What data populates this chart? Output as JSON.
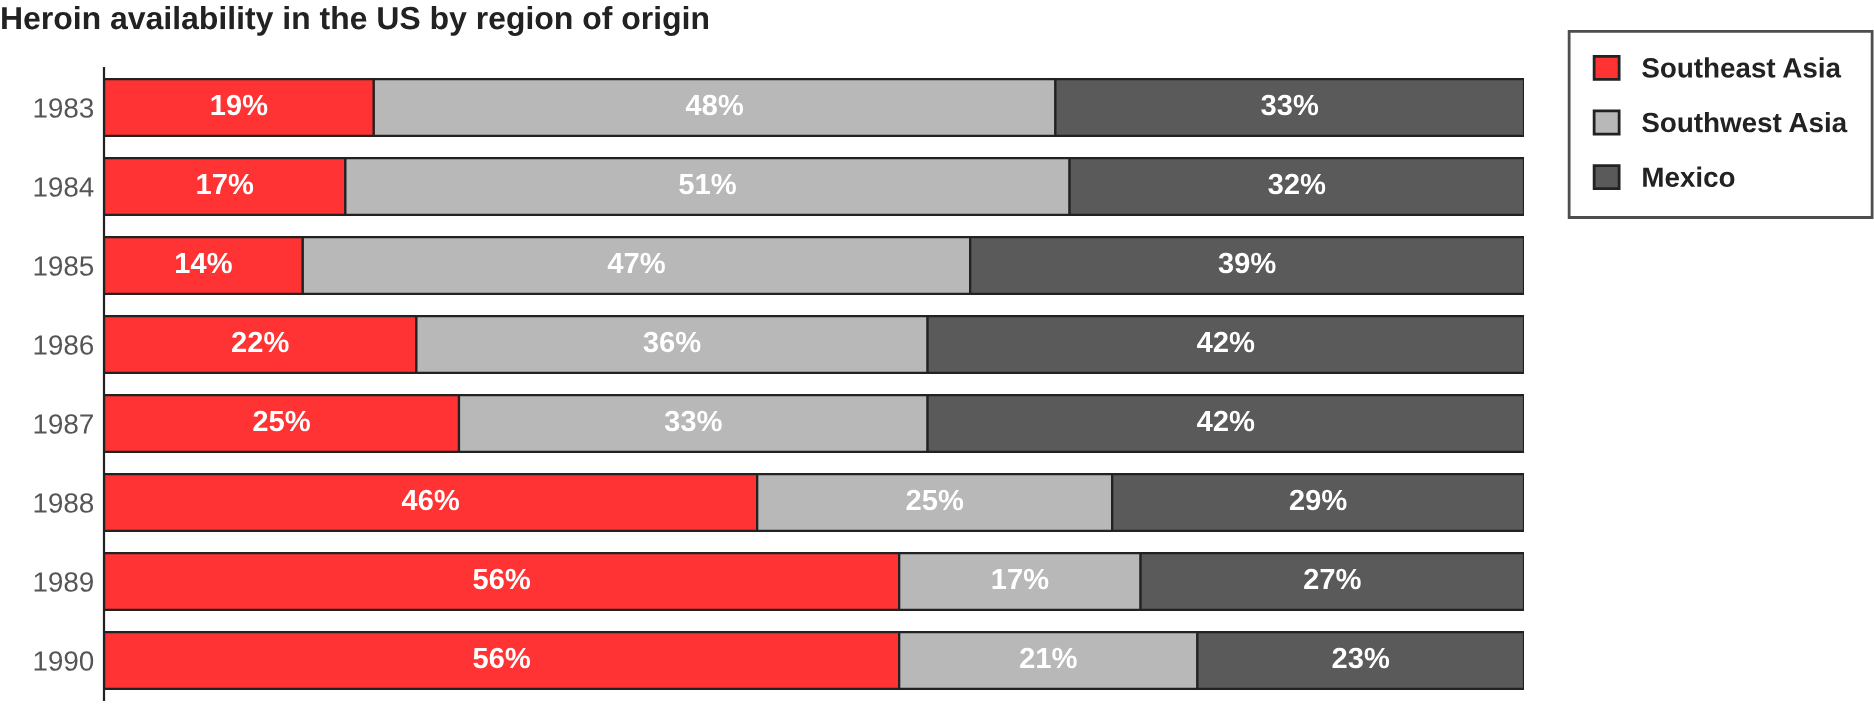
{
  "chart_data": {
    "type": "bar",
    "orientation": "horizontal",
    "stacked": true,
    "title": "Heroin availability in the US by region of origin",
    "categories": [
      "1983",
      "1984",
      "1985",
      "1986",
      "1987",
      "1988",
      "1989",
      "1990"
    ],
    "xlim": [
      0,
      100
    ],
    "tick_labels": "y",
    "legend": "top right",
    "series": [
      {
        "name": "Southeast Asia",
        "color": "#ff3333",
        "values": [
          19,
          17,
          14,
          22,
          25,
          46,
          56,
          56
        ],
        "value_labels": [
          "19%",
          "17%",
          "14%",
          "22%",
          "25%",
          "46%",
          "56%",
          "56%"
        ]
      },
      {
        "name": "Southwest Asia",
        "color": "#b8b8b8",
        "values": [
          48,
          51,
          47,
          36,
          33,
          25,
          17,
          21
        ],
        "value_labels": [
          "48%",
          "51%",
          "47%",
          "36%",
          "33%",
          "25%",
          "17%",
          "21%"
        ]
      },
      {
        "name": "Mexico",
        "color": "#5a5a5a",
        "values": [
          33,
          32,
          39,
          42,
          42,
          29,
          27,
          23
        ],
        "value_labels": [
          "33%",
          "32%",
          "39%",
          "42%",
          "42%",
          "29%",
          "27%",
          "23%"
        ]
      }
    ]
  }
}
